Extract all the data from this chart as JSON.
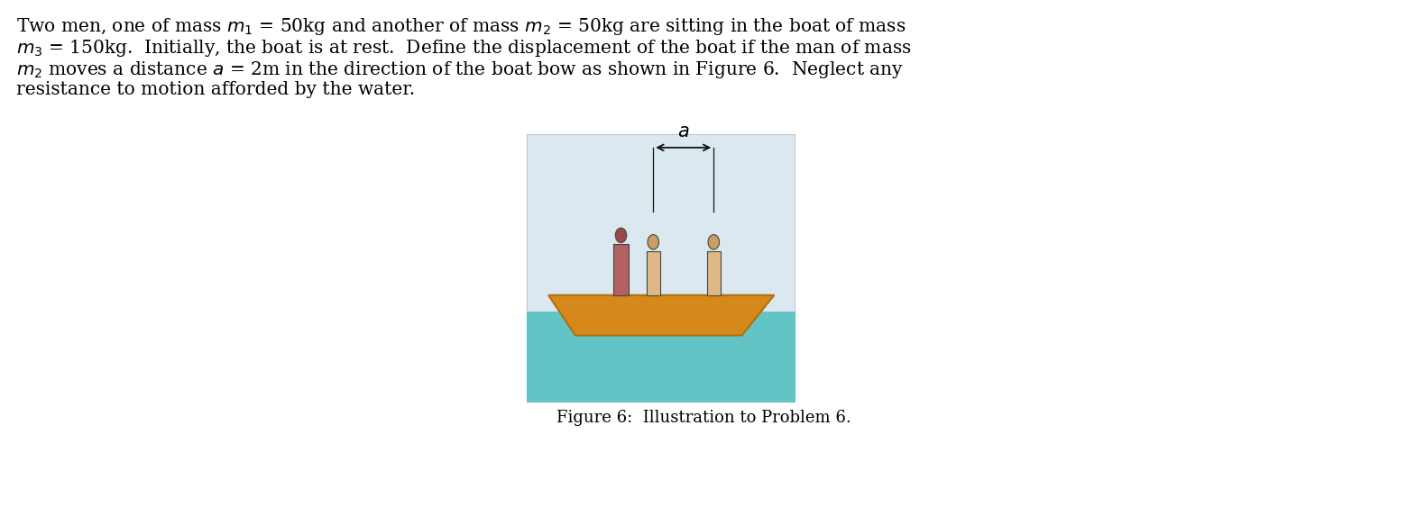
{
  "bg_color": "#ffffff",
  "water_color": "#62c4c4",
  "boat_color": "#d4891a",
  "boat_outline": "#b07010",
  "frame_bg": "#dce8f0",
  "frame_edge": "#adc0cc",
  "man1_body_color": "#b56060",
  "man1_head_color": "#9a4a4a",
  "man2_body_color": "#deb887",
  "man2_head_color": "#c8a060",
  "man3_body_color": "#deb887",
  "man3_head_color": "#c8a060",
  "arrow_color": "#111111",
  "caption_fontsize": 13,
  "fig_width": 15.6,
  "fig_height": 5.73
}
